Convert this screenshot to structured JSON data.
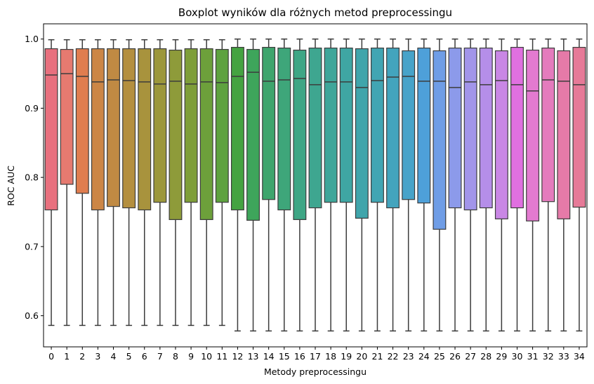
{
  "chart_data": {
    "type": "boxplot",
    "title": "Boxplot wyników dla różnych metod preprocessingu",
    "xlabel": "Metody preprocessingu",
    "ylabel": "ROC AUC",
    "ylim": [
      0.555,
      1.022
    ],
    "yticks": [
      "0.6",
      "0.7",
      "0.8",
      "0.9",
      "1.0"
    ],
    "ytick_values": [
      0.6,
      0.7,
      0.8,
      0.9,
      1.0
    ],
    "grid": false,
    "legend": "none",
    "categories": [
      "0",
      "1",
      "2",
      "3",
      "4",
      "5",
      "6",
      "7",
      "8",
      "9",
      "10",
      "11",
      "12",
      "13",
      "14",
      "15",
      "16",
      "17",
      "18",
      "19",
      "20",
      "21",
      "22",
      "23",
      "24",
      "25",
      "26",
      "27",
      "28",
      "29",
      "30",
      "31",
      "32",
      "33",
      "34"
    ],
    "boxes": [
      {
        "min": 0.586,
        "q1": 0.753,
        "median": 0.948,
        "q3": 0.986,
        "max": 0.999,
        "color": "#e8707e"
      },
      {
        "min": 0.586,
        "q1": 0.79,
        "median": 0.95,
        "q3": 0.985,
        "max": 0.999,
        "color": "#e67a70"
      },
      {
        "min": 0.586,
        "q1": 0.777,
        "median": 0.946,
        "q3": 0.986,
        "max": 0.999,
        "color": "#e07d4f"
      },
      {
        "min": 0.586,
        "q1": 0.753,
        "median": 0.938,
        "q3": 0.986,
        "max": 0.999,
        "color": "#cc8646"
      },
      {
        "min": 0.586,
        "q1": 0.758,
        "median": 0.941,
        "q3": 0.986,
        "max": 0.999,
        "color": "#c08a43"
      },
      {
        "min": 0.586,
        "q1": 0.756,
        "median": 0.94,
        "q3": 0.986,
        "max": 0.999,
        "color": "#b48f3f"
      },
      {
        "min": 0.586,
        "q1": 0.753,
        "median": 0.938,
        "q3": 0.986,
        "max": 0.999,
        "color": "#a8933d"
      },
      {
        "min": 0.586,
        "q1": 0.764,
        "median": 0.935,
        "q3": 0.986,
        "max": 0.999,
        "color": "#9c973b"
      },
      {
        "min": 0.586,
        "q1": 0.739,
        "median": 0.939,
        "q3": 0.984,
        "max": 0.999,
        "color": "#8e9b3a"
      },
      {
        "min": 0.586,
        "q1": 0.764,
        "median": 0.935,
        "q3": 0.986,
        "max": 0.999,
        "color": "#7e9e39"
      },
      {
        "min": 0.586,
        "q1": 0.739,
        "median": 0.938,
        "q3": 0.986,
        "max": 0.999,
        "color": "#6da03b"
      },
      {
        "min": 0.586,
        "q1": 0.764,
        "median": 0.937,
        "q3": 0.985,
        "max": 0.999,
        "color": "#5ea23f"
      },
      {
        "min": 0.578,
        "q1": 0.753,
        "median": 0.946,
        "q3": 0.988,
        "max": 1.0,
        "color": "#44a341"
      },
      {
        "min": 0.578,
        "q1": 0.738,
        "median": 0.952,
        "q3": 0.985,
        "max": 1.0,
        "color": "#3ea55b"
      },
      {
        "min": 0.578,
        "q1": 0.768,
        "median": 0.939,
        "q3": 0.988,
        "max": 1.0,
        "color": "#3ea56d"
      },
      {
        "min": 0.578,
        "q1": 0.753,
        "median": 0.941,
        "q3": 0.987,
        "max": 1.0,
        "color": "#3ea67a"
      },
      {
        "min": 0.578,
        "q1": 0.739,
        "median": 0.943,
        "q3": 0.984,
        "max": 1.0,
        "color": "#3ea685"
      },
      {
        "min": 0.578,
        "q1": 0.756,
        "median": 0.934,
        "q3": 0.987,
        "max": 1.0,
        "color": "#3ea690"
      },
      {
        "min": 0.578,
        "q1": 0.764,
        "median": 0.938,
        "q3": 0.987,
        "max": 1.0,
        "color": "#3fa69a"
      },
      {
        "min": 0.578,
        "q1": 0.764,
        "median": 0.938,
        "q3": 0.987,
        "max": 1.0,
        "color": "#3fa6a3"
      },
      {
        "min": 0.578,
        "q1": 0.741,
        "median": 0.93,
        "q3": 0.986,
        "max": 1.0,
        "color": "#40a5ab"
      },
      {
        "min": 0.578,
        "q1": 0.764,
        "median": 0.94,
        "q3": 0.987,
        "max": 1.0,
        "color": "#41a5b3"
      },
      {
        "min": 0.578,
        "q1": 0.756,
        "median": 0.945,
        "q3": 0.987,
        "max": 1.0,
        "color": "#43a4bd"
      },
      {
        "min": 0.578,
        "q1": 0.768,
        "median": 0.946,
        "q3": 0.983,
        "max": 1.0,
        "color": "#47a3c9"
      },
      {
        "min": 0.578,
        "q1": 0.763,
        "median": 0.939,
        "q3": 0.987,
        "max": 1.0,
        "color": "#4ea0d9"
      },
      {
        "min": 0.578,
        "q1": 0.725,
        "median": 0.939,
        "q3": 0.983,
        "max": 1.0,
        "color": "#6f9de6"
      },
      {
        "min": 0.578,
        "q1": 0.756,
        "median": 0.93,
        "q3": 0.987,
        "max": 1.0,
        "color": "#8c9aea"
      },
      {
        "min": 0.578,
        "q1": 0.753,
        "median": 0.938,
        "q3": 0.987,
        "max": 1.0,
        "color": "#a295ea"
      },
      {
        "min": 0.578,
        "q1": 0.756,
        "median": 0.934,
        "q3": 0.987,
        "max": 1.0,
        "color": "#b58ee9"
      },
      {
        "min": 0.578,
        "q1": 0.74,
        "median": 0.94,
        "q3": 0.983,
        "max": 1.0,
        "color": "#c987e5"
      },
      {
        "min": 0.578,
        "q1": 0.756,
        "median": 0.934,
        "q3": 0.988,
        "max": 1.0,
        "color": "#e070e0"
      },
      {
        "min": 0.578,
        "q1": 0.737,
        "median": 0.925,
        "q3": 0.984,
        "max": 1.0,
        "color": "#e37ad0"
      },
      {
        "min": 0.578,
        "q1": 0.765,
        "median": 0.941,
        "q3": 0.987,
        "max": 1.0,
        "color": "#e47bbd"
      },
      {
        "min": 0.578,
        "q1": 0.74,
        "median": 0.939,
        "q3": 0.983,
        "max": 1.0,
        "color": "#e57aa8"
      },
      {
        "min": 0.578,
        "q1": 0.757,
        "median": 0.934,
        "q3": 0.988,
        "max": 1.0,
        "color": "#e67a98"
      }
    ]
  }
}
